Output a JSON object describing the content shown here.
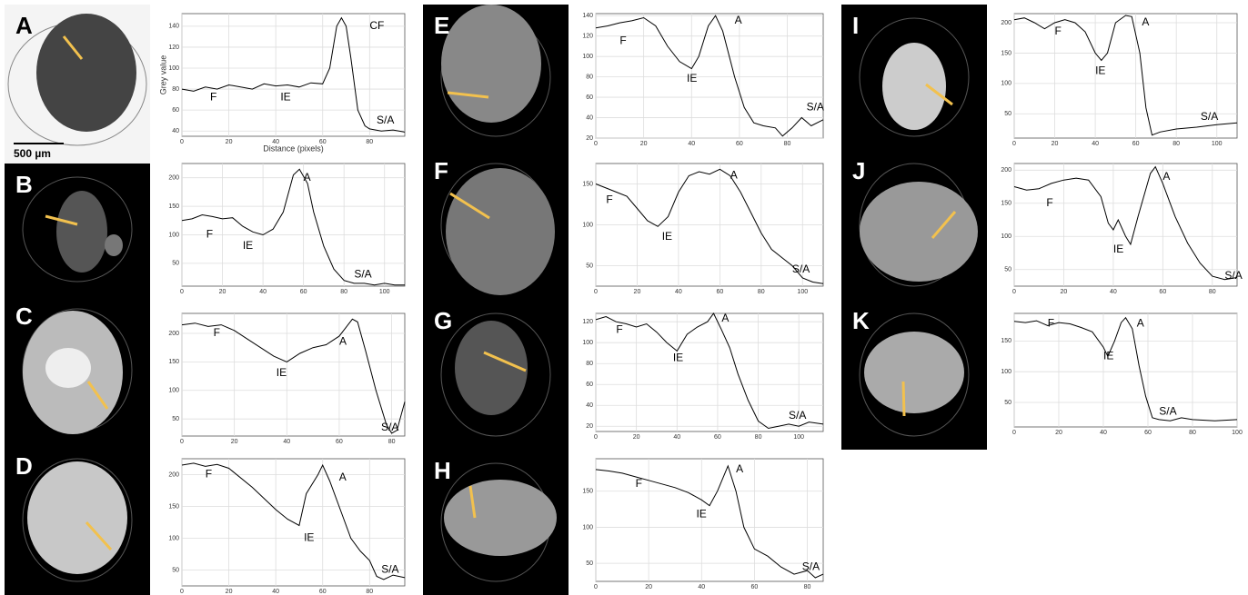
{
  "chart_data": [
    {
      "type": "line",
      "label": "A",
      "color": "#000000",
      "grid": true,
      "ylabel": "Grey value",
      "xlabel": "Distance (pixels)",
      "scale_bar": "500 µm",
      "x": [
        0,
        5,
        10,
        15,
        20,
        25,
        30,
        35,
        40,
        45,
        50,
        55,
        60,
        63,
        66,
        68,
        70,
        72,
        75,
        78,
        80,
        85,
        90,
        95
      ],
      "values": [
        80,
        78,
        82,
        80,
        84,
        82,
        80,
        85,
        83,
        84,
        82,
        86,
        85,
        100,
        140,
        148,
        140,
        110,
        60,
        45,
        42,
        40,
        41,
        39
      ],
      "xlim": [
        0,
        95
      ],
      "ylim": [
        35,
        152
      ],
      "xticks": [
        0,
        20,
        40,
        60,
        80
      ],
      "yticks": [
        40,
        60,
        80,
        100,
        120,
        140
      ],
      "annotations": [
        "F",
        "IE",
        "CF",
        "S/A"
      ]
    },
    {
      "type": "line",
      "label": "B",
      "color": "#000000",
      "grid": true,
      "x": [
        0,
        5,
        10,
        15,
        20,
        25,
        30,
        35,
        40,
        45,
        50,
        55,
        58,
        62,
        65,
        70,
        75,
        80,
        85,
        90,
        95,
        100,
        105,
        110
      ],
      "values": [
        125,
        128,
        135,
        132,
        128,
        130,
        115,
        105,
        100,
        110,
        140,
        205,
        215,
        190,
        140,
        80,
        40,
        20,
        15,
        15,
        12,
        15,
        12,
        12
      ],
      "xlim": [
        0,
        110
      ],
      "ylim": [
        10,
        225
      ],
      "xticks": [
        0,
        20,
        40,
        60,
        80,
        100
      ],
      "yticks": [
        50,
        100,
        150,
        200
      ],
      "annotations": [
        "F",
        "IE",
        "A",
        "S/A"
      ]
    },
    {
      "type": "line",
      "label": "C",
      "color": "#000000",
      "grid": true,
      "x": [
        0,
        5,
        10,
        15,
        20,
        25,
        30,
        35,
        40,
        45,
        50,
        55,
        60,
        65,
        67,
        70,
        74,
        78,
        80,
        82,
        85
      ],
      "values": [
        215,
        218,
        212,
        215,
        205,
        190,
        175,
        160,
        150,
        165,
        175,
        180,
        195,
        225,
        220,
        170,
        100,
        40,
        25,
        30,
        80
      ],
      "xlim": [
        0,
        85
      ],
      "ylim": [
        20,
        235
      ],
      "xticks": [
        0,
        20,
        40,
        60,
        80
      ],
      "yticks": [
        50,
        100,
        150,
        200
      ],
      "annotations": [
        "F",
        "IE",
        "A",
        "S/A"
      ]
    },
    {
      "type": "line",
      "label": "D",
      "color": "#000000",
      "grid": true,
      "x": [
        0,
        5,
        10,
        15,
        20,
        30,
        40,
        45,
        50,
        53,
        58,
        60,
        63,
        68,
        72,
        76,
        80,
        83,
        86,
        90,
        95
      ],
      "values": [
        215,
        218,
        213,
        216,
        210,
        180,
        145,
        130,
        120,
        170,
        200,
        215,
        190,
        140,
        100,
        80,
        65,
        40,
        35,
        42,
        38
      ],
      "xlim": [
        0,
        95
      ],
      "ylim": [
        25,
        225
      ],
      "xticks": [
        0,
        20,
        40,
        60,
        80
      ],
      "yticks": [
        50,
        100,
        150,
        200
      ],
      "annotations": [
        "F",
        "IE",
        "A",
        "S/A"
      ]
    },
    {
      "type": "line",
      "label": "E",
      "color": "#000000",
      "grid": true,
      "x": [
        0,
        5,
        10,
        15,
        20,
        25,
        30,
        35,
        40,
        43,
        47,
        50,
        53,
        58,
        62,
        66,
        70,
        75,
        78,
        82,
        86,
        90,
        95
      ],
      "values": [
        128,
        130,
        133,
        135,
        138,
        130,
        110,
        95,
        88,
        100,
        130,
        140,
        125,
        80,
        50,
        35,
        32,
        30,
        22,
        30,
        40,
        32,
        38
      ],
      "xlim": [
        0,
        95
      ],
      "ylim": [
        20,
        142
      ],
      "xticks": [
        0,
        20,
        40,
        60,
        80
      ],
      "yticks": [
        20,
        40,
        60,
        80,
        100,
        120,
        140
      ],
      "annotations": [
        "F",
        "IE",
        "A",
        "S/A"
      ]
    },
    {
      "type": "line",
      "label": "F",
      "color": "#000000",
      "grid": true,
      "x": [
        0,
        5,
        10,
        15,
        20,
        25,
        30,
        35,
        40,
        45,
        50,
        55,
        60,
        65,
        70,
        75,
        80,
        85,
        90,
        95,
        100,
        105,
        110
      ],
      "values": [
        150,
        145,
        140,
        135,
        120,
        105,
        98,
        110,
        140,
        160,
        165,
        162,
        168,
        160,
        140,
        115,
        90,
        70,
        60,
        50,
        35,
        30,
        28
      ],
      "xlim": [
        0,
        110
      ],
      "ylim": [
        25,
        175
      ],
      "xticks": [
        0,
        20,
        40,
        60,
        80,
        100
      ],
      "yticks": [
        50,
        100,
        150
      ],
      "annotations": [
        "F",
        "IE",
        "A",
        "S/A"
      ]
    },
    {
      "type": "line",
      "label": "G",
      "color": "#000000",
      "grid": true,
      "x": [
        0,
        5,
        10,
        15,
        20,
        25,
        30,
        35,
        40,
        45,
        50,
        55,
        58,
        62,
        66,
        70,
        75,
        80,
        85,
        90,
        95,
        100,
        105,
        112
      ],
      "values": [
        122,
        125,
        120,
        118,
        115,
        118,
        110,
        100,
        92,
        108,
        115,
        120,
        128,
        112,
        95,
        70,
        45,
        25,
        18,
        20,
        22,
        20,
        24,
        22
      ],
      "xlim": [
        0,
        112
      ],
      "ylim": [
        15,
        128
      ],
      "xticks": [
        0,
        20,
        40,
        60,
        80,
        100
      ],
      "yticks": [
        20,
        40,
        60,
        80,
        100,
        120
      ],
      "annotations": [
        "F",
        "IE",
        "A",
        "S/A"
      ]
    },
    {
      "type": "line",
      "label": "H",
      "color": "#000000",
      "grid": true,
      "x": [
        0,
        5,
        10,
        15,
        20,
        25,
        30,
        35,
        40,
        43,
        46,
        50,
        53,
        56,
        60,
        65,
        70,
        75,
        80,
        83,
        86
      ],
      "values": [
        180,
        178,
        175,
        170,
        165,
        160,
        155,
        148,
        138,
        130,
        150,
        185,
        150,
        100,
        70,
        60,
        45,
        35,
        40,
        30,
        35
      ],
      "xlim": [
        0,
        86
      ],
      "ylim": [
        25,
        195
      ],
      "xticks": [
        0,
        20,
        40,
        60,
        80
      ],
      "yticks": [
        50,
        100,
        150
      ],
      "annotations": [
        "F",
        "IE",
        "A",
        "S/A"
      ]
    },
    {
      "type": "line",
      "label": "I",
      "color": "#000000",
      "grid": true,
      "x": [
        0,
        5,
        10,
        15,
        20,
        25,
        30,
        35,
        40,
        43,
        46,
        50,
        55,
        58,
        62,
        65,
        68,
        72,
        80,
        90,
        100,
        110
      ],
      "values": [
        205,
        208,
        200,
        190,
        200,
        205,
        200,
        185,
        150,
        138,
        150,
        200,
        212,
        210,
        150,
        60,
        15,
        20,
        25,
        28,
        32,
        35
      ],
      "xlim": [
        0,
        110
      ],
      "ylim": [
        10,
        215
      ],
      "xticks": [
        0,
        20,
        40,
        60,
        80,
        100
      ],
      "yticks": [
        50,
        100,
        150,
        200
      ],
      "annotations": [
        "F",
        "IE",
        "A",
        "S/A"
      ]
    },
    {
      "type": "line",
      "label": "J",
      "color": "#000000",
      "grid": true,
      "x": [
        0,
        5,
        10,
        15,
        20,
        25,
        30,
        35,
        38,
        40,
        42,
        45,
        47,
        50,
        55,
        57,
        60,
        65,
        70,
        75,
        80,
        85,
        90
      ],
      "values": [
        175,
        170,
        172,
        180,
        185,
        188,
        185,
        160,
        120,
        110,
        125,
        100,
        88,
        130,
        195,
        205,
        180,
        130,
        90,
        60,
        40,
        35,
        38
      ],
      "xlim": [
        0,
        90
      ],
      "ylim": [
        25,
        210
      ],
      "xticks": [
        0,
        20,
        40,
        60,
        80
      ],
      "yticks": [
        50,
        100,
        150,
        200
      ],
      "annotations": [
        "F",
        "IE",
        "A",
        "S/A"
      ]
    },
    {
      "type": "line",
      "label": "K",
      "color": "#000000",
      "grid": true,
      "x": [
        0,
        5,
        10,
        15,
        20,
        25,
        30,
        35,
        40,
        42,
        45,
        48,
        50,
        53,
        56,
        59,
        62,
        65,
        70,
        75,
        80,
        90,
        100
      ],
      "values": [
        182,
        180,
        183,
        175,
        180,
        178,
        172,
        165,
        140,
        125,
        150,
        180,
        188,
        170,
        110,
        60,
        25,
        22,
        20,
        25,
        22,
        20,
        22
      ],
      "xlim": [
        0,
        100
      ],
      "ylim": [
        10,
        195
      ],
      "xticks": [
        0,
        20,
        40,
        60,
        80,
        100
      ],
      "yticks": [
        50,
        100,
        150
      ],
      "annotations": [
        "F",
        "IE",
        "A",
        "S/A"
      ]
    }
  ]
}
